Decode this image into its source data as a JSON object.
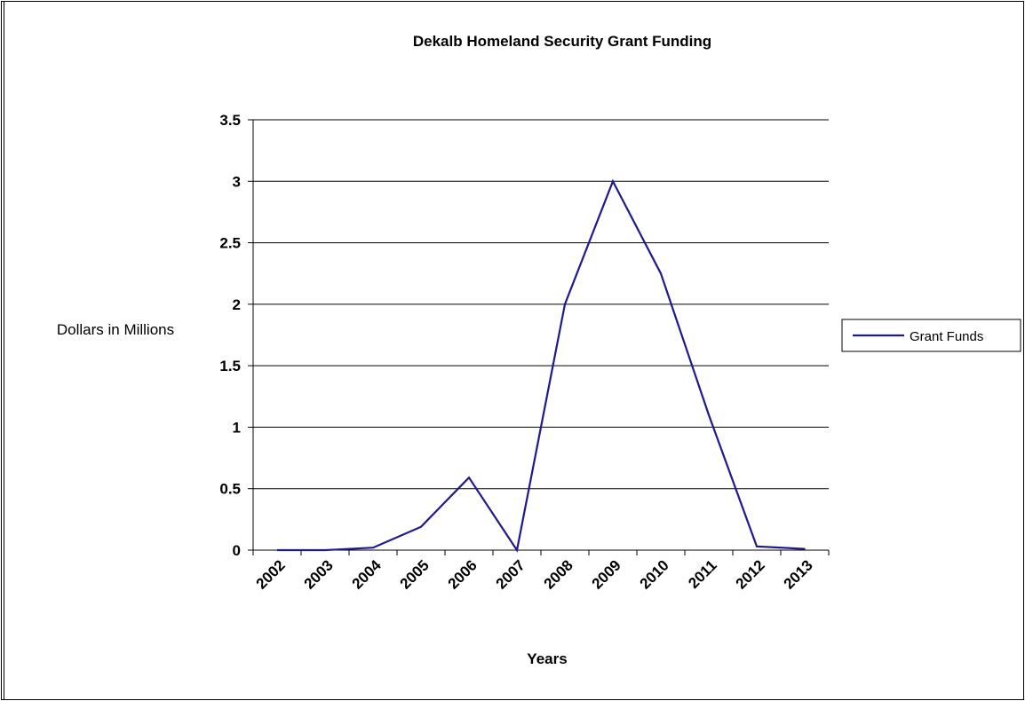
{
  "chart_data": {
    "type": "line",
    "title": "Dekalb Homeland Security Grant Funding",
    "xlabel": "Years",
    "ylabel": "Dollars in Millions",
    "categories": [
      "2002",
      "2003",
      "2004",
      "2005",
      "2006",
      "2007",
      "2008",
      "2009",
      "2010",
      "2011",
      "2012",
      "2013"
    ],
    "series": [
      {
        "name": "Grant Funds",
        "color": "#1f1a8c",
        "values": [
          0,
          0,
          0.02,
          0.19,
          0.59,
          0,
          2.0,
          3.0,
          2.25,
          1.1,
          0.03,
          0.01
        ]
      }
    ],
    "ylim": [
      0,
      3.5
    ],
    "yticks": [
      "0",
      "0.5",
      "1",
      "1.5",
      "2",
      "2.5",
      "3",
      "3.5"
    ],
    "grid": true,
    "legend_position": "right"
  }
}
